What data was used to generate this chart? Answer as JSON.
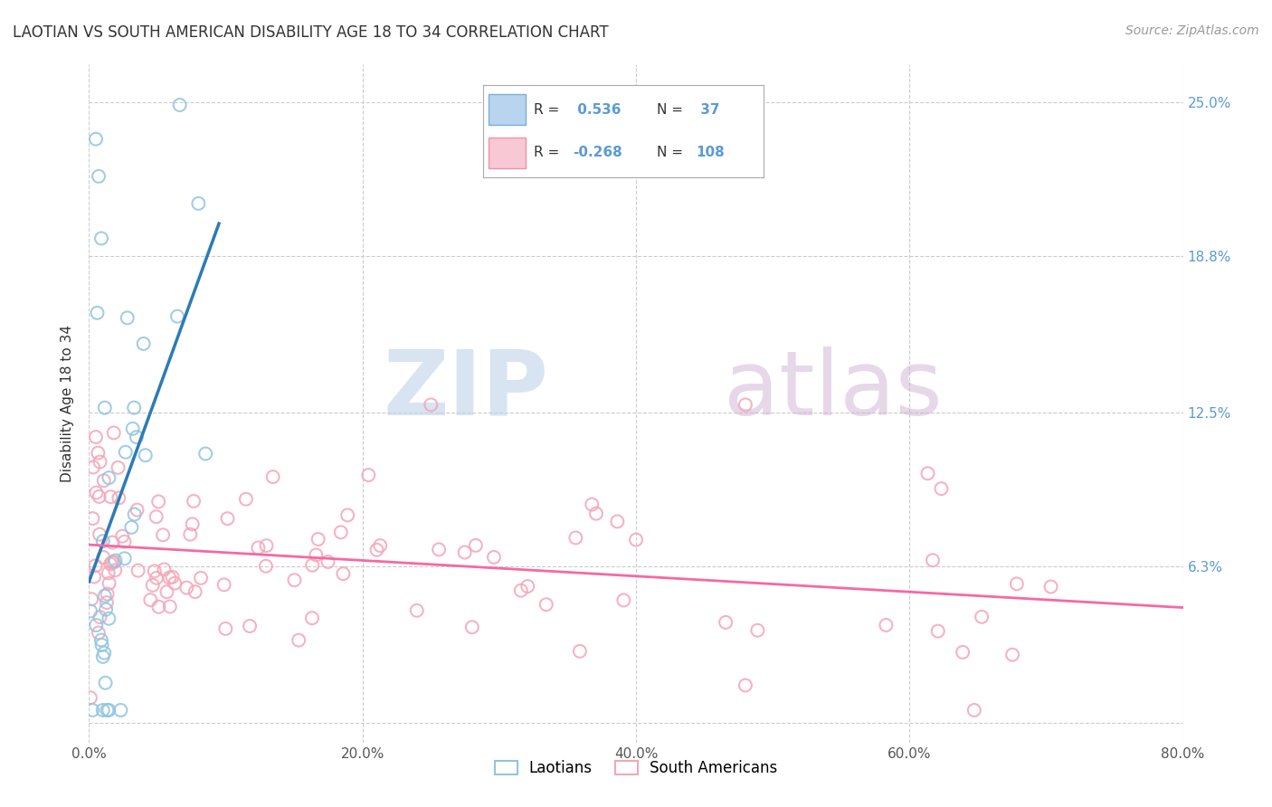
{
  "title": "LAOTIAN VS SOUTH AMERICAN DISABILITY AGE 18 TO 34 CORRELATION CHART",
  "source": "Source: ZipAtlas.com",
  "ylabel": "Disability Age 18 to 34",
  "watermark_zip": "ZIP",
  "watermark_atlas": "atlas",
  "xmin": 0.0,
  "xmax": 0.8,
  "ymin": -0.008,
  "ymax": 0.265,
  "ytick_vals": [
    0.0,
    0.063,
    0.125,
    0.188,
    0.25
  ],
  "ytick_labels_right": [
    "",
    "6.3%",
    "12.5%",
    "18.8%",
    "25.0%"
  ],
  "xtick_vals": [
    0.0,
    0.2,
    0.4,
    0.6,
    0.8
  ],
  "xtick_labels": [
    "0.0%",
    "20.0%",
    "40.0%",
    "60.0%",
    "80.0%"
  ],
  "laotian_color": "#92c5de",
  "south_american_color": "#f4a6b8",
  "laotian_edge_color": "#5b9fd6",
  "south_american_edge_color": "#f07090",
  "laotian_line_color": "#2c7bb6",
  "south_american_line_color": "#f768a1",
  "background_color": "#ffffff",
  "grid_color": "#cccccc",
  "title_color": "#333333",
  "source_color": "#999999",
  "ylabel_color": "#333333",
  "tick_color": "#5b9bd5",
  "legend_r1_val": "0.536",
  "legend_n1_val": "37",
  "legend_r2_val": "-0.268",
  "legend_n2_val": "108"
}
